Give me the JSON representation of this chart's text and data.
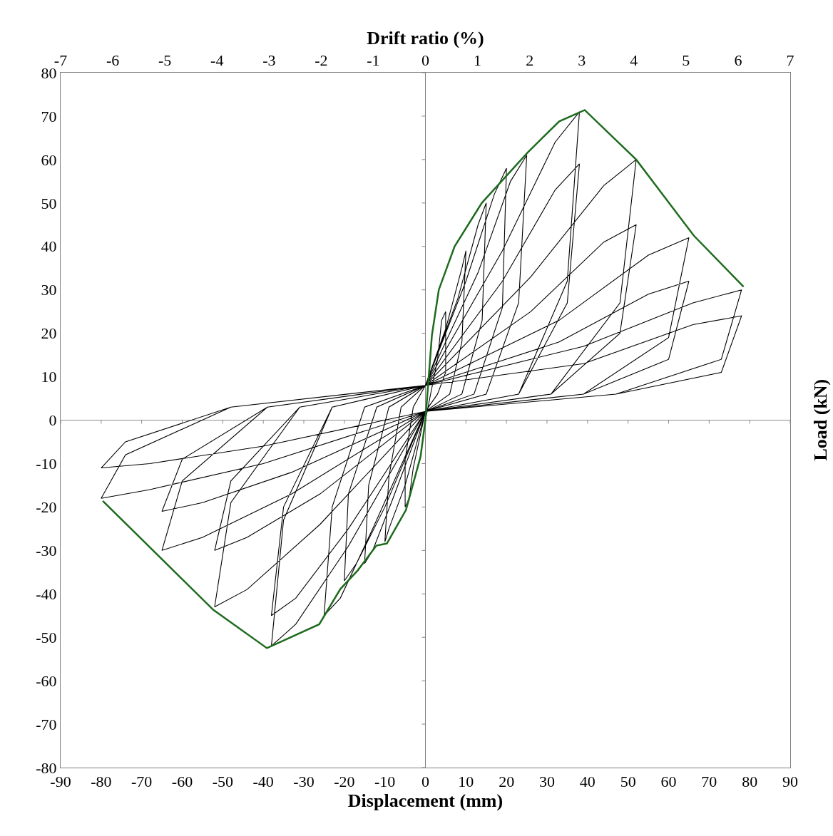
{
  "chart_data": {
    "type": "line",
    "xlabel": "Displacement (mm)",
    "x2label": "Drift ratio (%)",
    "ylabel": "Load (kN)",
    "xlim": [
      -90,
      90
    ],
    "xticks": [
      -90,
      -80,
      -70,
      -60,
      -50,
      -40,
      -30,
      -20,
      -10,
      0,
      10,
      20,
      30,
      40,
      50,
      60,
      70,
      80,
      90
    ],
    "x2lim": [
      -7,
      7
    ],
    "x2ticks": [
      -7,
      -6,
      -5,
      -4,
      -3,
      -2,
      -1,
      0,
      1,
      2,
      3,
      4,
      5,
      6,
      7
    ],
    "ylim": [
      -80,
      80
    ],
    "yticks": [
      -80,
      -70,
      -60,
      -50,
      -40,
      -30,
      -20,
      -10,
      0,
      10,
      20,
      30,
      40,
      50,
      60,
      70,
      80
    ],
    "grid": false,
    "marker": "none",
    "line_style": "solid",
    "ref_lines": [
      {
        "axis": "x",
        "value": 0,
        "color": "#808080"
      },
      {
        "axis": "y",
        "value": 0,
        "color": "#8c8c8c"
      }
    ],
    "series": [
      {
        "color": "#000000",
        "x": [
          0,
          3,
          4,
          5,
          5,
          3,
          0,
          -3,
          -4,
          -5,
          -5,
          -3,
          0,
          5,
          9,
          10,
          9,
          6,
          0,
          -5,
          -9,
          -10,
          -9,
          -6,
          0,
          8,
          13,
          15,
          14,
          9,
          0,
          -8,
          -13,
          -15,
          -14,
          -9,
          0,
          10,
          17,
          20,
          19,
          12,
          0,
          -10,
          -17,
          -20,
          -19,
          -12,
          0,
          13,
          21,
          25,
          23,
          15,
          0,
          -13,
          -21,
          -25,
          -23,
          -15,
          0,
          19,
          32,
          38,
          35,
          23,
          0,
          -19,
          -32,
          -38,
          -35,
          -23,
          0,
          19,
          32,
          38,
          35,
          23,
          0,
          -19,
          -32,
          -38,
          -35,
          -23,
          0,
          26,
          44,
          52,
          48,
          31,
          0,
          -26,
          -44,
          -52,
          -48,
          -31,
          0,
          26,
          44,
          52,
          48,
          31,
          0,
          -26,
          -44,
          -52,
          -48,
          -31,
          0,
          33,
          55,
          65,
          60,
          39,
          0,
          -33,
          -55,
          -65,
          -60,
          -39,
          0,
          33,
          55,
          65,
          60,
          39,
          0,
          -33,
          -55,
          -65,
          -60,
          -39,
          0,
          39,
          66,
          78,
          73,
          47,
          0,
          -40,
          -68,
          -80,
          -74,
          -48,
          0,
          39,
          66,
          78,
          73,
          47,
          0,
          -40,
          -68,
          -80,
          -74,
          -48,
          0
        ],
        "values": [
          0,
          14,
          23,
          25,
          11,
          6,
          2,
          -11,
          -18,
          -20,
          -9,
          3,
          8,
          21,
          35,
          39,
          18,
          6,
          2,
          -15,
          -25,
          -28,
          -13,
          3,
          8,
          28,
          45,
          50,
          23,
          6,
          2,
          -18,
          -30,
          -33,
          -15,
          3,
          8,
          32,
          52,
          58,
          26,
          6,
          2,
          -20,
          -33,
          -37,
          -17,
          3,
          8,
          34,
          55,
          61,
          27,
          6,
          2,
          -25,
          -41,
          -45,
          -20,
          3,
          8,
          39,
          64,
          71,
          32,
          6,
          2,
          -29,
          -47,
          -52,
          -23,
          3,
          8,
          32,
          53,
          59,
          27,
          6,
          2,
          -25,
          -41,
          -45,
          -20,
          3,
          8,
          33,
          54,
          60,
          27,
          6,
          2,
          -24,
          -39,
          -43,
          -19,
          3,
          8,
          25,
          41,
          45,
          20,
          6,
          2,
          -17,
          -27,
          -30,
          -14,
          3,
          8,
          23,
          38,
          42,
          19,
          6,
          2,
          -17,
          -27,
          -30,
          -14,
          3,
          8,
          18,
          29,
          32,
          14,
          6,
          2,
          -12,
          -19,
          -21,
          -9,
          3,
          8,
          17,
          27,
          30,
          14,
          6,
          2,
          -10,
          -16,
          -18,
          -8,
          3,
          8,
          13,
          22,
          24,
          11,
          6,
          2,
          -6,
          -10,
          -11,
          -5,
          3,
          8
        ]
      },
      {
        "color": "#1e6b1e",
        "x": [
          -79.6,
          -52.3,
          -39.1,
          -26.2,
          -21,
          -16.7,
          -12.1,
          -9.5,
          -4.8,
          -1.2,
          0,
          1.6,
          3.3,
          7.2,
          13.9,
          25.2,
          33,
          39.3,
          52,
          66.2,
          78.5
        ],
        "values": [
          -18.6,
          -43.7,
          -52.5,
          -47,
          -38.9,
          -34.6,
          -28.9,
          -28.4,
          -20.7,
          -8.4,
          0,
          19.5,
          30,
          40,
          50,
          61.6,
          68.8,
          71.4,
          60,
          42.5,
          30.7
        ]
      }
    ]
  }
}
